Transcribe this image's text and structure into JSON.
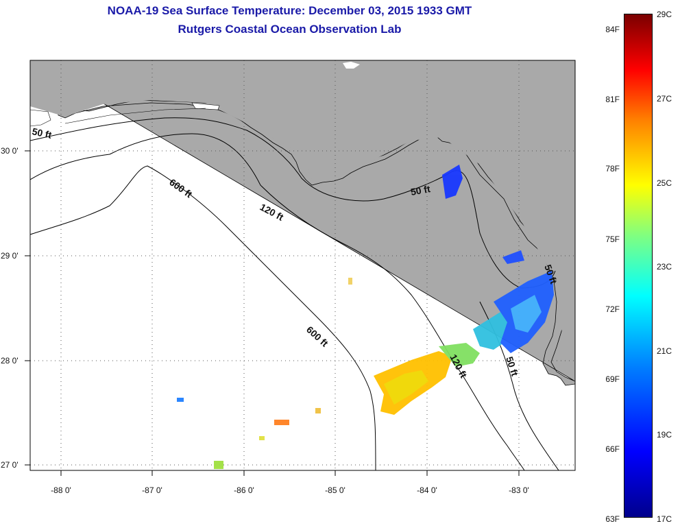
{
  "title": {
    "line1": "NOAA-19 Sea Surface Temperature:  December 03, 2015 1933 GMT",
    "line2": "Rutgers Coastal Ocean Observation Lab"
  },
  "map": {
    "lon_labels": [
      "-88 0'",
      "-87 0'",
      "-86 0'",
      "-85 0'",
      "-84 0'",
      "-83 0'"
    ],
    "lat_labels": [
      "30 0'",
      "29 0'",
      "28 0'",
      "27 0'"
    ],
    "isobath_labels": [
      "50 ft",
      "600 ft",
      "120 ft",
      "50 ft",
      "600 ft",
      "120 ft",
      "50 ft",
      "50 ft"
    ]
  },
  "colorbar": {
    "fahrenheit_ticks": [
      "84F",
      "81F",
      "78F",
      "75F",
      "72F",
      "69F",
      "66F",
      "63F"
    ],
    "celsius_ticks": [
      "29C",
      "27C",
      "25C",
      "23C",
      "21C",
      "19C",
      "17C"
    ]
  },
  "colors": {
    "land": "#a9a9a9",
    "water": "#ffffff",
    "title": "#1a1aa8"
  }
}
